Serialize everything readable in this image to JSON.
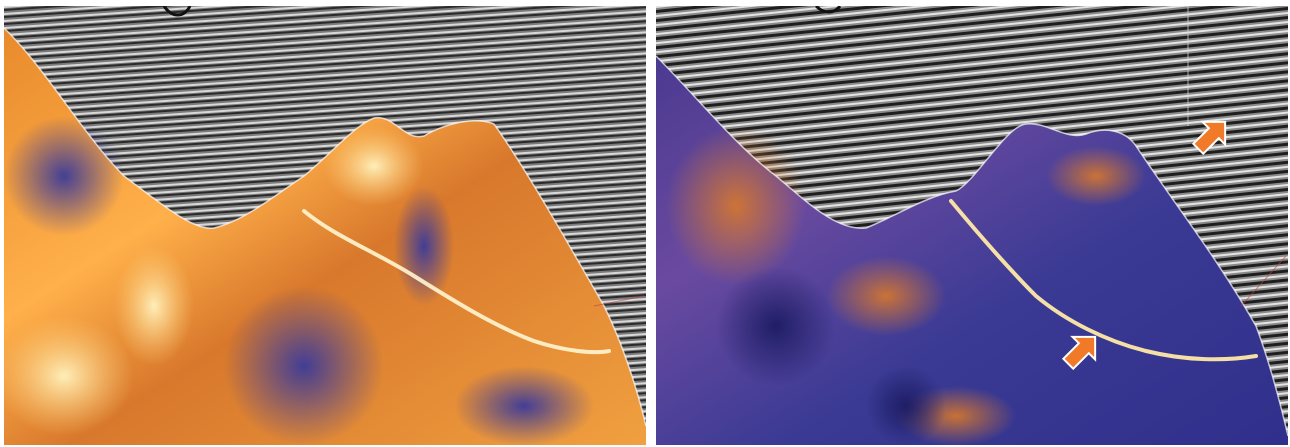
{
  "figure": {
    "panels": [
      {
        "id": "left",
        "description_name": "seismic-attribute-panel-left",
        "palette": {
          "seismic_dark": "#2a2a2a",
          "seismic_light": "#d8d8d8",
          "attr_high": "#ffd27a",
          "attr_mid": "#e88a2c",
          "attr_low": "#3a3a9a"
        }
      },
      {
        "id": "right",
        "description_name": "seismic-attribute-panel-right",
        "palette": {
          "seismic_dark": "#1e1e1e",
          "seismic_light": "#e4e4e4",
          "attr_high": "#ffe08a",
          "attr_mid": "#d8782c",
          "attr_low": "#30308c"
        },
        "arrows": {
          "color": "#f07a28",
          "count": 2
        }
      }
    ]
  }
}
